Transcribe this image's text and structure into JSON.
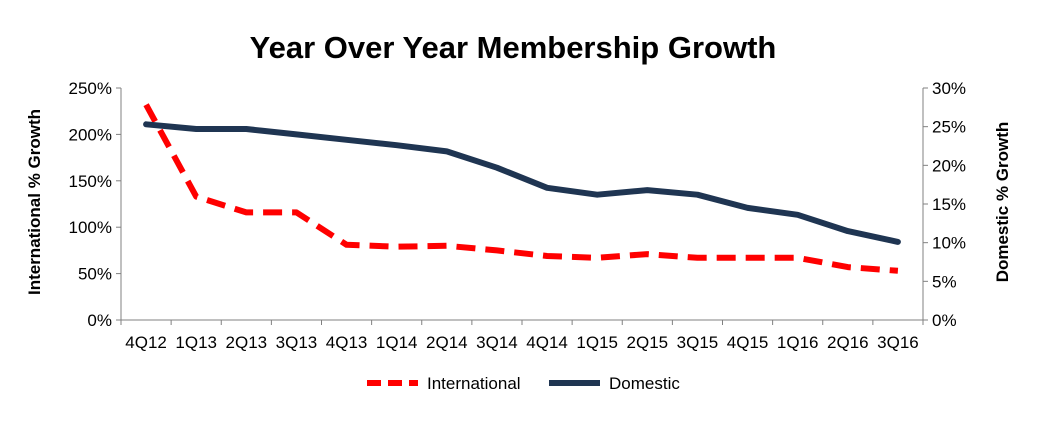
{
  "chart_data": {
    "type": "line",
    "title": "Year Over Year Membership Growth",
    "categories": [
      "4Q12",
      "1Q13",
      "2Q13",
      "3Q13",
      "4Q13",
      "1Q14",
      "2Q14",
      "3Q14",
      "4Q14",
      "1Q15",
      "2Q15",
      "3Q15",
      "4Q15",
      "1Q16",
      "2Q16",
      "3Q16"
    ],
    "series": [
      {
        "name": "International",
        "axis": "left",
        "style": "dashed",
        "color": "#ff0000",
        "values": [
          232,
          133,
          116,
          116,
          81,
          79,
          80,
          75,
          69,
          67,
          71,
          67,
          67,
          67,
          57,
          53
        ]
      },
      {
        "name": "Domestic",
        "axis": "right",
        "style": "solid",
        "color": "#1f3552",
        "values": [
          25.3,
          24.7,
          24.7,
          24.0,
          23.3,
          22.6,
          21.8,
          19.7,
          17.1,
          16.2,
          16.8,
          16.2,
          14.5,
          13.6,
          11.5,
          10.1
        ]
      }
    ],
    "ylabel_left": "International % Growth",
    "ylabel_right": "Domestic % Growth",
    "ylim_left": [
      0,
      250
    ],
    "ylim_right": [
      0,
      30
    ],
    "yticks_left": [
      "0%",
      "50%",
      "100%",
      "150%",
      "200%",
      "250%"
    ],
    "yticks_right": [
      "0%",
      "5%",
      "10%",
      "15%",
      "20%",
      "25%",
      "30%"
    ],
    "grid": false,
    "legend_position": "bottom"
  }
}
